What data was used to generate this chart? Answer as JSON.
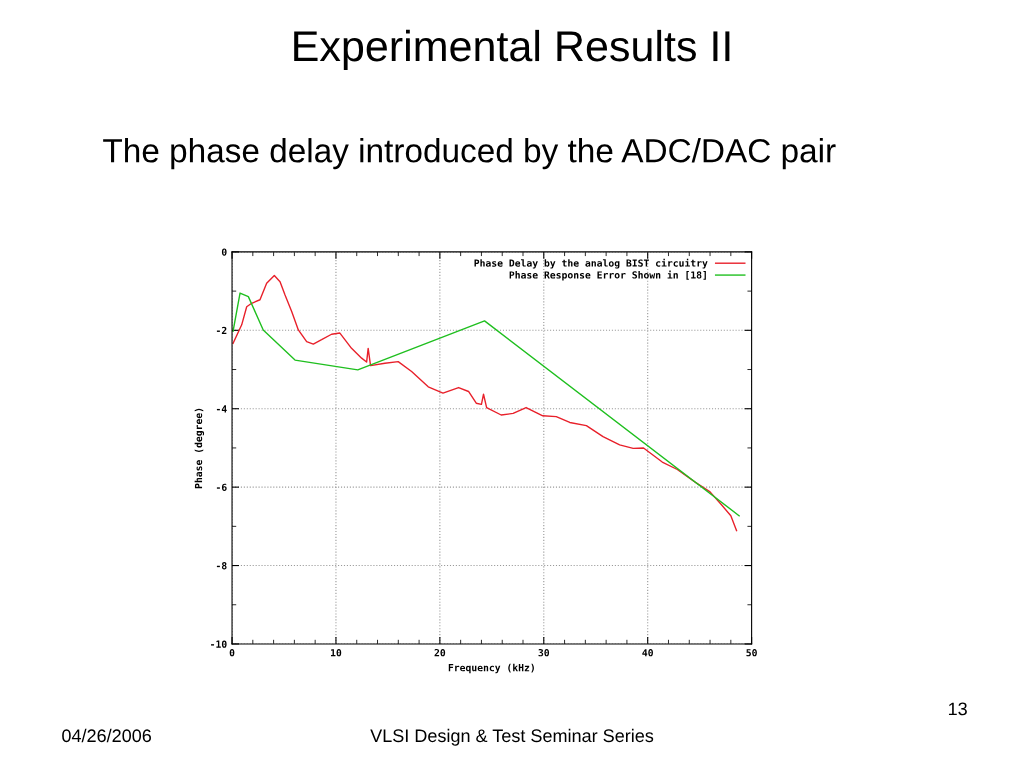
{
  "chart_data": {
    "type": "line",
    "title": "Experimental Results II",
    "subtitle": "The phase delay introduced by the ADC/DAC pair",
    "xlabel": "Frequency (kHz)",
    "ylabel": "Phase (degree)",
    "xlim": [
      0,
      50
    ],
    "xticks": [
      0,
      10,
      20,
      30,
      40,
      50
    ],
    "ylim": [
      -10,
      0
    ],
    "yticks": [
      -10,
      -8,
      -6,
      -4,
      -2,
      0
    ],
    "grid": true,
    "legend": "top right",
    "line_style": "solid",
    "marker": "none",
    "annotations": [
      "04/26/2006",
      "VLSI Design & Test Seminar Series",
      "13"
    ],
    "series": [
      {
        "name": "Phase Delay by the analog BIST circuitry",
        "color": "#e8202a",
        "x": [
          0.1,
          0.93,
          1.41,
          1.89,
          2.69,
          3.33,
          4.07,
          4.62,
          5.1,
          5.74,
          6.38,
          7.18,
          7.82,
          8.62,
          9.58,
          10.38,
          11.5,
          12.47,
          12.95,
          13.1,
          13.33,
          14.71,
          15.99,
          17.28,
          18.88,
          20.3,
          21.8,
          22.76,
          23.5,
          24.0,
          24.2,
          24.5,
          25.9,
          27.05,
          28.3,
          29.9,
          31.2,
          32.5,
          34.1,
          35.7,
          37.3,
          38.6,
          39.6,
          40.5,
          41.4,
          42.85,
          44.6,
          46.0,
          47.1,
          48.0,
          48.55
        ],
        "values": [
          -2.33,
          -1.86,
          -1.4,
          -1.31,
          -1.22,
          -0.8,
          -0.6,
          -0.76,
          -1.1,
          -1.52,
          -1.99,
          -2.29,
          -2.35,
          -2.24,
          -2.1,
          -2.07,
          -2.46,
          -2.71,
          -2.81,
          -2.46,
          -2.9,
          -2.84,
          -2.8,
          -3.05,
          -3.44,
          -3.6,
          -3.46,
          -3.56,
          -3.86,
          -3.89,
          -3.63,
          -3.97,
          -4.16,
          -4.12,
          -3.97,
          -4.18,
          -4.2,
          -4.35,
          -4.43,
          -4.71,
          -4.92,
          -5.01,
          -5.0,
          -5.18,
          -5.36,
          -5.55,
          -5.88,
          -6.12,
          -6.45,
          -6.73,
          -7.11
        ]
      },
      {
        "name": "Phase Response Error Shown in [18]",
        "color": "#1fbf1f",
        "x": [
          0.1,
          0.77,
          1.57,
          3.0,
          6.06,
          12.1,
          24.3,
          48.8
        ],
        "values": [
          -2.02,
          -1.05,
          -1.14,
          -1.99,
          -2.76,
          -3.01,
          -1.76,
          -6.73
        ]
      }
    ]
  }
}
